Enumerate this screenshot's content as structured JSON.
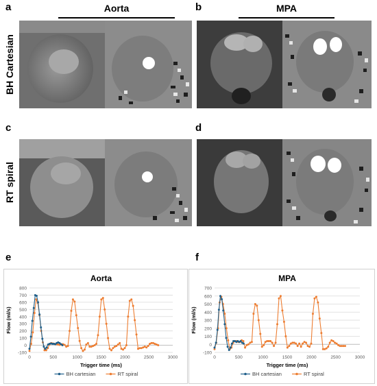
{
  "panel_letters": {
    "a": "a",
    "b": "b",
    "c": "c",
    "d": "d",
    "e": "e",
    "f": "f"
  },
  "column_titles": {
    "aorta": "Aorta",
    "mpa": "MPA"
  },
  "row_labels": {
    "bh": "BH Cartesian",
    "rt": "RT spiral"
  },
  "colors": {
    "bh": "#1f5f8a",
    "rt": "#ed7d31",
    "grid": "#d9d9d9"
  },
  "chart_data": [
    {
      "type": "line",
      "title": "Aorta",
      "xlabel": "Trigger time (ms)",
      "ylabel": "Flow (ml/s)",
      "xlim": [
        0,
        3000
      ],
      "ylim": [
        -100,
        800
      ],
      "xticks": [
        0,
        500,
        1000,
        1500,
        2000,
        2500,
        3000
      ],
      "yticks": [
        -100,
        0,
        100,
        200,
        300,
        400,
        500,
        600,
        700,
        800
      ],
      "legend_position": "bottom",
      "series": [
        {
          "name": "BH cartesian",
          "color": "#1f5f8a",
          "x": [
            0,
            30,
            60,
            90,
            120,
            150,
            180,
            210,
            240,
            270,
            300,
            330,
            360,
            390,
            420,
            450,
            480,
            510,
            540,
            570,
            600,
            630,
            660,
            690
          ],
          "y": [
            -50,
            120,
            340,
            520,
            700,
            690,
            600,
            430,
            250,
            90,
            -20,
            -50,
            -30,
            10,
            20,
            25,
            20,
            20,
            15,
            30,
            40,
            30,
            15,
            0
          ]
        },
        {
          "name": "RT spiral",
          "color": "#ed7d31",
          "x": [
            0,
            35,
            70,
            105,
            140,
            175,
            210,
            245,
            280,
            315,
            350,
            385,
            420,
            455,
            490,
            525,
            560,
            595,
            630,
            665,
            700,
            735,
            770,
            805,
            840,
            875,
            910,
            945,
            980,
            1015,
            1050,
            1085,
            1120,
            1155,
            1190,
            1225,
            1260,
            1295,
            1330,
            1365,
            1400,
            1435,
            1470,
            1505,
            1540,
            1575,
            1610,
            1645,
            1680,
            1715,
            1750,
            1785,
            1820,
            1855,
            1890,
            1925,
            1960,
            1995,
            2030,
            2065,
            2100,
            2135,
            2170,
            2205,
            2240,
            2275,
            2310,
            2345,
            2380,
            2415,
            2450,
            2485,
            2520,
            2555,
            2590,
            2625,
            2660,
            2695
          ],
          "y": [
            -80,
            20,
            180,
            450,
            640,
            590,
            420,
            200,
            40,
            -70,
            -70,
            -40,
            10,
            30,
            25,
            20,
            15,
            10,
            5,
            10,
            15,
            5,
            -20,
            -10,
            200,
            480,
            640,
            610,
            420,
            240,
            60,
            -40,
            -80,
            -60,
            10,
            30,
            -20,
            -20,
            -10,
            0,
            20,
            140,
            400,
            640,
            660,
            500,
            300,
            100,
            -50,
            -70,
            -40,
            -20,
            -10,
            10,
            30,
            -50,
            -60,
            -40,
            0,
            400,
            620,
            640,
            550,
            350,
            150,
            -50,
            -40,
            -40,
            -30,
            -20,
            -30,
            -10,
            20,
            30,
            30,
            20,
            10,
            0
          ]
        }
      ]
    },
    {
      "type": "line",
      "title": "MPA",
      "xlabel": "Trigger time (ms)",
      "ylabel": "Flow (ml/s)",
      "xlim": [
        0,
        3000
      ],
      "ylim": [
        -100,
        700
      ],
      "xticks": [
        0,
        500,
        1000,
        1500,
        2000,
        2500,
        3000
      ],
      "yticks": [
        -100,
        0,
        100,
        200,
        300,
        400,
        500,
        600,
        700
      ],
      "legend_position": "bottom",
      "series": [
        {
          "name": "BH cartesian",
          "color": "#1f5f8a",
          "x": [
            0,
            30,
            60,
            90,
            120,
            150,
            180,
            210,
            240,
            270,
            300,
            330,
            360,
            390,
            420,
            450,
            480,
            510,
            540,
            570,
            600
          ],
          "y": [
            -40,
            20,
            180,
            430,
            600,
            560,
            420,
            250,
            80,
            -30,
            -70,
            -40,
            10,
            40,
            40,
            30,
            40,
            30,
            40,
            20,
            10
          ]
        },
        {
          "name": "RT spiral",
          "color": "#ed7d31",
          "x": [
            0,
            35,
            70,
            105,
            140,
            175,
            210,
            245,
            280,
            315,
            350,
            385,
            420,
            455,
            490,
            525,
            560,
            595,
            630,
            665,
            700,
            735,
            770,
            805,
            840,
            875,
            910,
            945,
            980,
            1015,
            1050,
            1085,
            1120,
            1155,
            1190,
            1225,
            1260,
            1295,
            1330,
            1365,
            1400,
            1435,
            1470,
            1505,
            1540,
            1575,
            1610,
            1645,
            1680,
            1715,
            1750,
            1785,
            1820,
            1855,
            1890,
            1925,
            1960,
            1995,
            2030,
            2065,
            2100,
            2135,
            2170,
            2205,
            2240,
            2275,
            2310,
            2345,
            2380,
            2415,
            2450,
            2485,
            2520,
            2555,
            2590,
            2625,
            2660,
            2695
          ],
          "y": [
            -60,
            20,
            200,
            520,
            590,
            500,
            380,
            200,
            50,
            -60,
            -40,
            20,
            40,
            40,
            30,
            30,
            50,
            40,
            -40,
            -10,
            0,
            20,
            30,
            380,
            500,
            480,
            300,
            130,
            -30,
            -10,
            30,
            40,
            40,
            40,
            20,
            -20,
            20,
            250,
            570,
            600,
            420,
            280,
            100,
            -40,
            -20,
            10,
            20,
            20,
            10,
            -20,
            10,
            -30,
            10,
            30,
            20,
            -20,
            -30,
            10,
            380,
            570,
            590,
            520,
            320,
            140,
            -60,
            -60,
            -50,
            -30,
            20,
            50,
            40,
            20,
            10,
            -10,
            -20,
            -20,
            -20,
            -20
          ]
        }
      ]
    }
  ]
}
